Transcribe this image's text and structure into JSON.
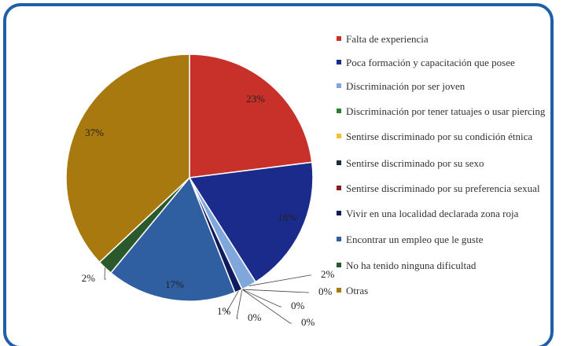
{
  "chart_data": {
    "type": "pie",
    "categories": [
      "Falta de experiencia",
      "Poca formación y capacitación que posee",
      "Discriminación por ser joven",
      "Discriminación por tener tatuajes o usar piercing",
      "Sentirse discriminado por su condición étnica",
      "Sentirse discriminado por su sexo",
      "Sentirse discriminado por su preferencia sexual",
      "Vivir en una localidad declarada zona roja",
      "Encontrar un empleo que le guste",
      "No ha tenido ninguna dificultad",
      "Otras"
    ],
    "values": [
      23,
      18,
      2,
      0,
      0,
      0,
      0,
      1,
      17,
      2,
      37
    ],
    "value_labels": [
      "23%",
      "18%",
      "2%",
      "0%",
      "0%",
      "0%",
      "0%",
      "1%",
      "17%",
      "2%",
      "37%"
    ],
    "colors": [
      "#c8312a",
      "#1b2b8c",
      "#7fa7dc",
      "#2f7d34",
      "#f2c12e",
      "#1b2a40",
      "#8b1c1c",
      "#0f1b5c",
      "#2f5fa1",
      "#2a5a2c",
      "#a8790f"
    ],
    "legend": "right"
  }
}
